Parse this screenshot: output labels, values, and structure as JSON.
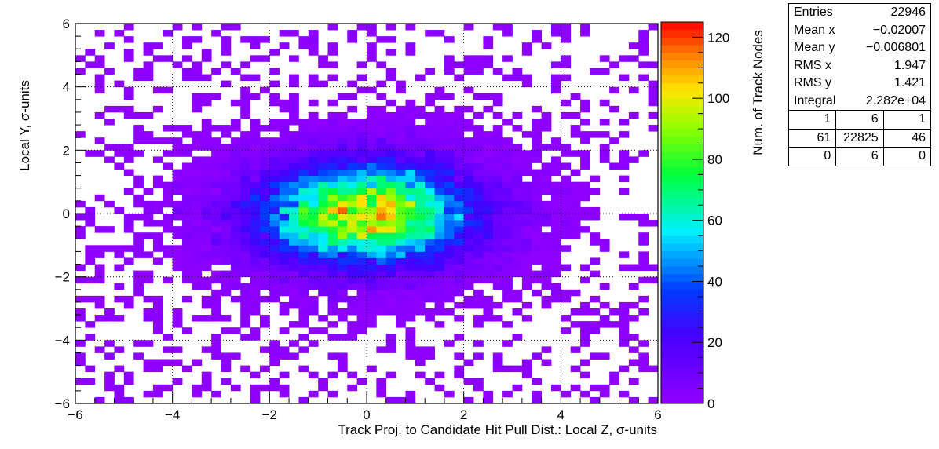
{
  "chart_data": {
    "type": "heatmap",
    "title": "",
    "xlabel": "Track Proj. to Candidate Hit Pull Dist.: Local Z, σ-units",
    "ylabel": "Local Y, σ-units",
    "zlabel": "Num. of Track Nodes",
    "xlim": [
      -6,
      6
    ],
    "ylim": [
      -6,
      6
    ],
    "zlim": [
      0,
      125
    ],
    "x_ticks": [
      "−6",
      "−4",
      "−2",
      "0",
      "2",
      "4",
      "6"
    ],
    "y_ticks": [
      "−6",
      "−4",
      "−2",
      "0",
      "2",
      "4",
      "6"
    ],
    "z_ticks": [
      "0",
      "20",
      "40",
      "60",
      "80",
      "100",
      "120"
    ],
    "bins_x": 60,
    "bins_y": 60,
    "distribution": {
      "mean_x": -0.02007,
      "mean_y": -0.006801,
      "rms_x": 1.947,
      "rms_y": 1.421,
      "peak_count": 120
    },
    "grid": true,
    "colormap": "rainbow (violet → blue → cyan → green → yellow → red)"
  },
  "stats": {
    "rows": [
      {
        "label": "Entries",
        "value": "22946"
      },
      {
        "label": "Mean x",
        "value": "−0.02007"
      },
      {
        "label": "Mean y",
        "value": "−0.006801"
      },
      {
        "label": "RMS x",
        "value": "1.947"
      },
      {
        "label": "RMS y",
        "value": "1.421"
      },
      {
        "label": "Integral",
        "value": "2.282e+04"
      }
    ],
    "overflow_grid": [
      [
        "1",
        "6",
        "1"
      ],
      [
        "61",
        "22825",
        "46"
      ],
      [
        "0",
        "6",
        "0"
      ]
    ]
  }
}
